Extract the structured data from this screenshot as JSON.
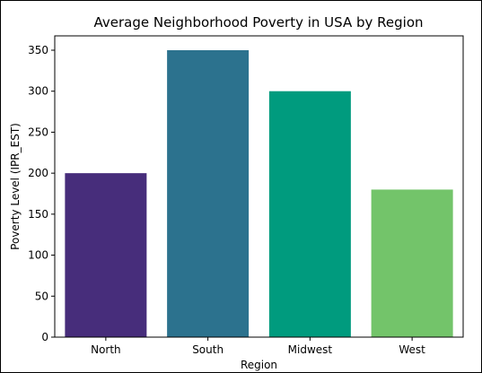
{
  "chart_data": {
    "type": "bar",
    "title": "Average Neighborhood Poverty in USA by Region",
    "xlabel": "Region",
    "ylabel": "Poverty Level (IPR_EST)",
    "categories": [
      "North",
      "South",
      "Midwest",
      "West"
    ],
    "values": [
      200,
      350,
      300,
      180
    ],
    "colors": [
      "#472D7B",
      "#2C728E",
      "#009B7E",
      "#73C46A"
    ],
    "ylim": [
      0,
      367.5
    ],
    "yticks": [
      0,
      50,
      100,
      150,
      200,
      250,
      300,
      350
    ],
    "ytick_labels": [
      "0",
      "50",
      "100",
      "150",
      "200",
      "250",
      "300",
      "350"
    ],
    "grid": false,
    "legend": "none"
  }
}
